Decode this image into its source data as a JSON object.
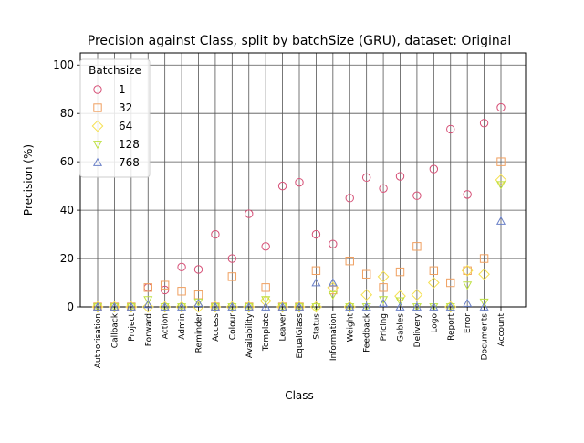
{
  "chart_data": {
    "type": "scatter",
    "title": "Precision against Class, split by batchSize (GRU), dataset: Original",
    "xlabel": "Class",
    "ylabel": "Precision (%)",
    "ylim": [
      0,
      105
    ],
    "yticks": [
      0,
      20,
      40,
      60,
      80,
      100
    ],
    "grid": true,
    "legend_title": "Batchsize",
    "legend_position": "top-left",
    "categories": [
      "Authorisation",
      "Callback",
      "Project",
      "Forward",
      "Action",
      "Admin",
      "Reminder",
      "Access",
      "Colour",
      "Availability",
      "Template",
      "Leaver",
      "EqualGlass",
      "Status",
      "Information",
      "Weight",
      "Feedback",
      "Pricing",
      "Gables",
      "Delivery",
      "Logo",
      "Report",
      "Error",
      "Documents",
      "Account"
    ],
    "series": [
      {
        "name": "1",
        "marker": "circle",
        "color": "#d64f76",
        "values": [
          0,
          0,
          0,
          8,
          7,
          16.5,
          15.5,
          30,
          20,
          38.5,
          25,
          50,
          51.5,
          30,
          26,
          45,
          53.5,
          49,
          54,
          46,
          57,
          73.5,
          46.5,
          76,
          82.5
        ]
      },
      {
        "name": "32",
        "marker": "square",
        "color": "#f0a060",
        "values": [
          0,
          0,
          0,
          8,
          9,
          6.5,
          5,
          0,
          12.5,
          0,
          8,
          0,
          0,
          15,
          7,
          19,
          13.5,
          8,
          14.5,
          25,
          15,
          10,
          15,
          20,
          60
        ]
      },
      {
        "name": "64",
        "marker": "diamond",
        "color": "#f5e050",
        "values": [
          0,
          0,
          0,
          0,
          0,
          0,
          0,
          0,
          0,
          0,
          2.5,
          0,
          0,
          0,
          8,
          0,
          5,
          12.5,
          4.5,
          5,
          10,
          0,
          15,
          13.5,
          52.5
        ]
      },
      {
        "name": "128",
        "marker": "triangle-down",
        "color": "#bde040",
        "values": [
          0,
          0,
          0,
          3,
          0,
          0,
          2,
          0,
          0,
          0,
          3,
          0,
          0,
          0,
          5,
          0,
          0,
          3,
          2.5,
          0,
          0,
          0,
          9,
          2,
          50.5
        ]
      },
      {
        "name": "768",
        "marker": "triangle-up",
        "color": "#6a80c8",
        "values": [
          0,
          0,
          0,
          1,
          0,
          0,
          1.5,
          0,
          0,
          0,
          0,
          0,
          0,
          10,
          10,
          0,
          0,
          1.5,
          0,
          0,
          0,
          0,
          1.5,
          0,
          35.5
        ]
      }
    ]
  }
}
